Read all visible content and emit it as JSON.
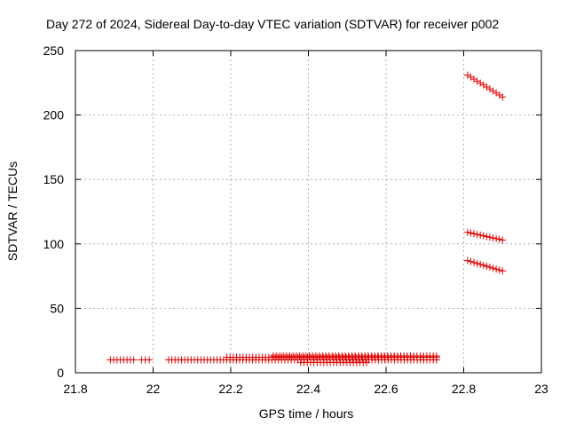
{
  "chart_data": {
    "type": "scatter",
    "title": "Day 272 of 2024, Sidereal Day-to-day VTEC variation (SDTVAR) for receiver p002",
    "xlabel": "GPS time / hours",
    "ylabel": "SDTVAR / TECUs",
    "xlim": [
      21.8,
      23.0
    ],
    "ylim": [
      0,
      250
    ],
    "xticks": [
      21.8,
      22.0,
      22.2,
      22.4,
      22.6,
      22.8,
      23.0
    ],
    "xtick_labels": [
      "21.8",
      "22",
      "22.2",
      "22.4",
      "22.6",
      "22.8",
      "23"
    ],
    "yticks": [
      0,
      50,
      100,
      150,
      200,
      250
    ],
    "ytick_labels": [
      "0",
      "50",
      "100",
      "150",
      "200",
      "250"
    ],
    "grid": true,
    "marker": "plus",
    "color": "#e00000",
    "series": [
      {
        "segments": [
          {
            "x_start": 21.89,
            "x_end": 21.95,
            "y_start": 10,
            "y_end": 10
          },
          {
            "x_start": 21.97,
            "x_end": 21.99,
            "y_start": 10,
            "y_end": 10
          },
          {
            "x_start": 22.04,
            "x_end": 22.73,
            "y_start": 10,
            "y_end": 10
          },
          {
            "x_start": 22.19,
            "x_end": 22.73,
            "y_start": 12,
            "y_end": 12
          },
          {
            "x_start": 22.31,
            "x_end": 22.73,
            "y_start": 13,
            "y_end": 13
          },
          {
            "x_start": 22.38,
            "x_end": 22.55,
            "y_start": 8,
            "y_end": 8
          },
          {
            "x_start": 22.81,
            "x_end": 22.9,
            "y_start": 231,
            "y_end": 214
          },
          {
            "x_start": 22.81,
            "x_end": 22.9,
            "y_start": 109,
            "y_end": 103
          },
          {
            "x_start": 22.81,
            "x_end": 22.9,
            "y_start": 87,
            "y_end": 79
          }
        ],
        "point_spacing_hours": 0.00833
      }
    ]
  }
}
